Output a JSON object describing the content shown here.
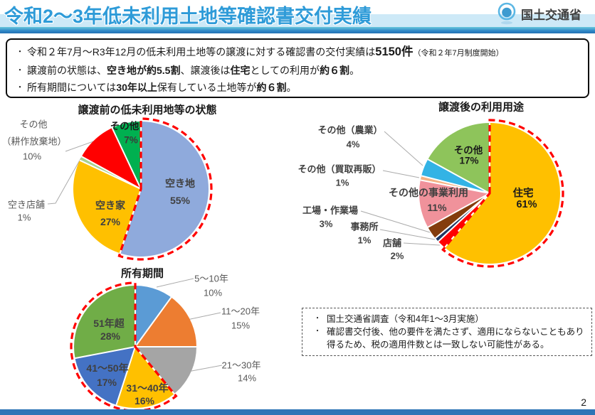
{
  "header": {
    "title": "令和2～3年低未利用土地等確認書交付実績",
    "agency": "国土交通省",
    "logo_icon": "mlit-logo",
    "title_color": "#2E9BD8"
  },
  "summary": {
    "bullet_marker": "・",
    "bullet1": {
      "t1": "令和２年7月～R3年12月の低未利用土地等の譲渡に対する確認書の交付実績は",
      "b1": "5150件",
      "t2": "（令和２年7月制度開始）"
    },
    "bullet2": {
      "t1": "譲渡前の状態は、",
      "b1": "空き地が約5.5割",
      "t2": "、譲渡後は",
      "b2": "住宅",
      "t3": "としての利用が",
      "b3": "約６割",
      "t4": "。"
    },
    "bullet3": {
      "t1": "所有期間については",
      "b1": "30年以上",
      "t2": "保有している土地等が",
      "b2": "約６割",
      "t3": "。"
    }
  },
  "chart_data": [
    {
      "type": "pie",
      "title": "譲渡前の低未利用地等の状態",
      "start_angle": "top",
      "direction": "clockwise",
      "slices": [
        {
          "label": "空き地",
          "value": 55,
          "pct": "55%",
          "color": "#8FAADC"
        },
        {
          "label": "空き家",
          "value": 27,
          "pct": "27%",
          "color": "#FFC000"
        },
        {
          "label": "空き店舗",
          "value": 1,
          "pct": "1%",
          "color": "#A9D18E"
        },
        {
          "label": "その他（耕作放棄地）",
          "label_lines": [
            "その他",
            "（耕作放棄地）"
          ],
          "value": 10,
          "pct": "10%",
          "color": "#FF0000"
        },
        {
          "label": "その他",
          "value": 7,
          "pct": "7%",
          "color": "#00B050"
        }
      ],
      "highlight": {
        "from": 0,
        "to": 0,
        "style": "red-dashed-outline"
      }
    },
    {
      "type": "pie",
      "title": "譲渡後の利用用途",
      "start_angle": "top",
      "direction": "clockwise",
      "slices": [
        {
          "label": "住宅",
          "value": 61,
          "pct": "61%",
          "color": "#FFC000"
        },
        {
          "label": "店舗",
          "value": 2,
          "pct": "2%",
          "color": "#FF0000"
        },
        {
          "label": "事務所",
          "value": 1,
          "pct": "1%",
          "color": "#1F3864"
        },
        {
          "label": "工場・作業場",
          "value": 3,
          "pct": "3%",
          "color": "#843C0C"
        },
        {
          "label": "その他の事業利用",
          "value": 11,
          "pct": "11%",
          "color": "#F0929B"
        },
        {
          "label": "その他（買取再販）",
          "value": 1,
          "pct": "1%",
          "color": "#F4B183"
        },
        {
          "label": "その他（農業）",
          "value": 4,
          "pct": "4%",
          "color": "#33B3E5"
        },
        {
          "label": "その他",
          "value": 17,
          "pct": "17%",
          "color": "#8EC45B"
        }
      ],
      "highlight": {
        "from": 0,
        "to": 0,
        "style": "red-dashed-outline"
      }
    },
    {
      "type": "pie",
      "title": "所有期間",
      "start_angle": "top",
      "direction": "clockwise",
      "slices": [
        {
          "label": "5～10年",
          "value": 10,
          "pct": "10%",
          "color": "#5B9BD5"
        },
        {
          "label": "11～20年",
          "value": 15,
          "pct": "15%",
          "color": "#ED7D31"
        },
        {
          "label": "21～30年",
          "value": 14,
          "pct": "14%",
          "color": "#A5A5A5"
        },
        {
          "label": "31～40年",
          "value": 16,
          "pct": "16%",
          "color": "#FFC000"
        },
        {
          "label": "41～50年",
          "value": 17,
          "pct": "17%",
          "color": "#4472C4"
        },
        {
          "label": "51年超",
          "value": 28,
          "pct": "28%",
          "color": "#70AD47"
        }
      ],
      "highlight": {
        "from": 3,
        "to": 5,
        "style": "red-dashed-outline"
      }
    }
  ],
  "note_box": {
    "items": [
      "国土交通省調査（令和4年1～3月実施）",
      "確認書交付後、他の要件を満たさず、適用にならないこともあり得るため、税の適用件数とは一致しない可能性がある。"
    ]
  },
  "footer": {
    "page_number": "2",
    "bar_color": "#2E75B6"
  }
}
